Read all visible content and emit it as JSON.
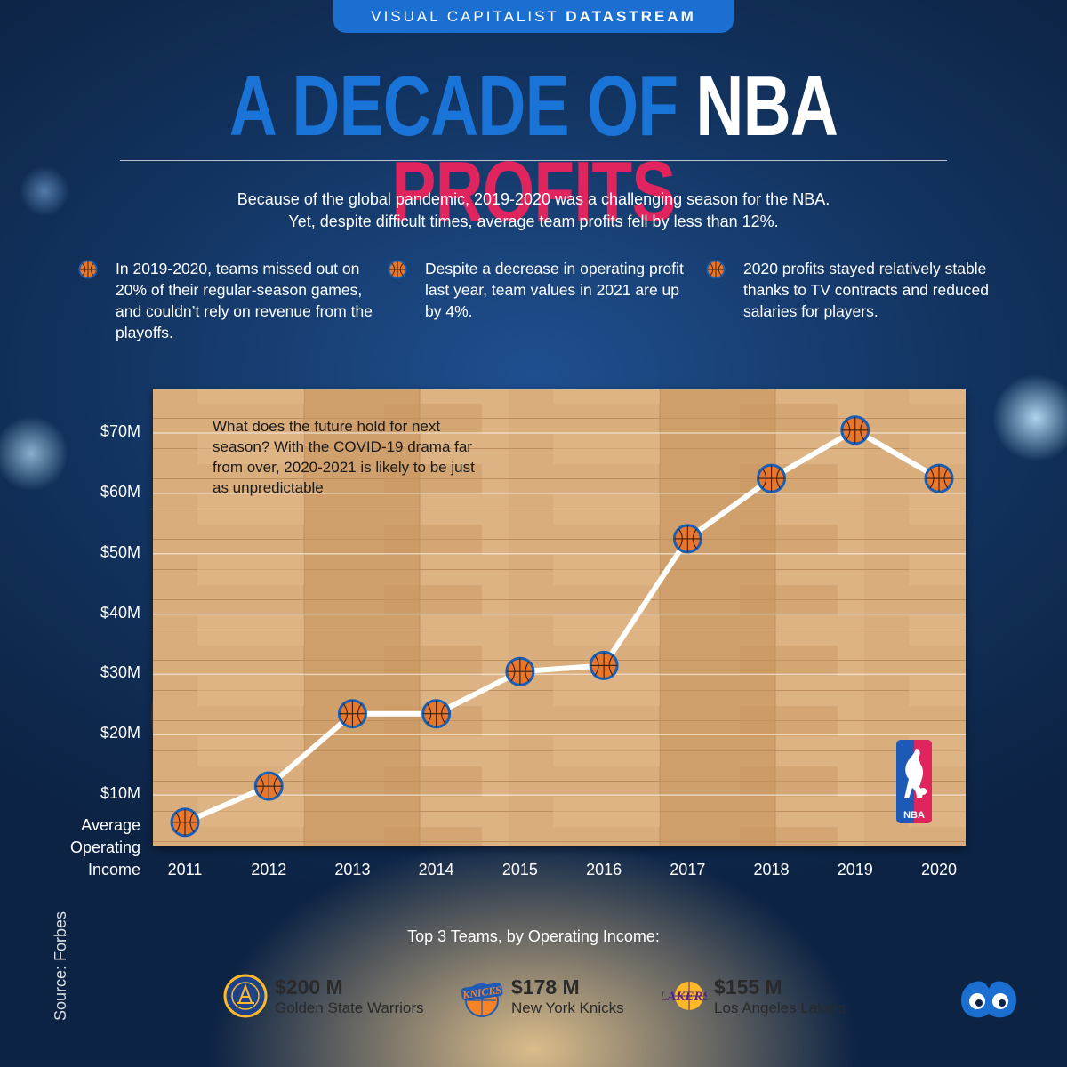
{
  "header": {
    "brand_light": "VISUAL CAPITALIST",
    "brand_bold": "DATASTREAM"
  },
  "title": {
    "part1": "A DECADE OF ",
    "part2": "NBA ",
    "part3": "PROFITS"
  },
  "intro": {
    "line1": "Because of the global pandemic, 2019-2020 was a challenging season for the NBA.",
    "line2": "Yet, despite difficult times, average team profits fell by less than 12%."
  },
  "bullets": [
    {
      "text": "In 2019-2020, teams missed out on 20% of their regular-season games, and couldn’t rely on revenue from the playoffs."
    },
    {
      "text": "Despite a decrease in operating profit last year, team values in 2021 are up by 4%."
    },
    {
      "text": "2020 profits stayed relatively stable thanks to TV contracts and reduced salaries for players."
    }
  ],
  "chart_data": {
    "type": "line",
    "title": "",
    "ylabel_lines": [
      "Average",
      "Operating",
      "Income"
    ],
    "x": [
      "2011",
      "2012",
      "2013",
      "2014",
      "2015",
      "2016",
      "2017",
      "2018",
      "2019",
      "2020"
    ],
    "values": [
      4,
      10,
      22,
      22,
      29,
      30,
      51,
      61,
      69,
      61
    ],
    "y_ticks": [
      "$10M",
      "$20M",
      "$30M",
      "$40M",
      "$50M",
      "$60M",
      "$70M"
    ],
    "y_tick_values": [
      10,
      20,
      30,
      40,
      50,
      60,
      70
    ],
    "ylim": [
      0,
      75
    ],
    "annotation": "What does the future hold for next season? With the COVID-19 drama far from over, 2020-2021 is likely to be just as unpredictable",
    "colors": {
      "line": "#ffffff",
      "marker": "#e8762b",
      "marker_stroke": "#1a5fb4"
    }
  },
  "source": "Source: Forbes",
  "top_teams": {
    "title": "Top 3 Teams, by Operating Income:",
    "teams": [
      {
        "value": "$200 M",
        "name": "Golden State Warriors",
        "icon": "warriors-logo-icon"
      },
      {
        "value": "$178 M",
        "name": "New York Knicks",
        "icon": "knicks-logo-icon"
      },
      {
        "value": "$155 M",
        "name": "Los Angeles Lakers",
        "icon": "lakers-logo-icon"
      }
    ]
  },
  "nba_logo_text": "NBA"
}
